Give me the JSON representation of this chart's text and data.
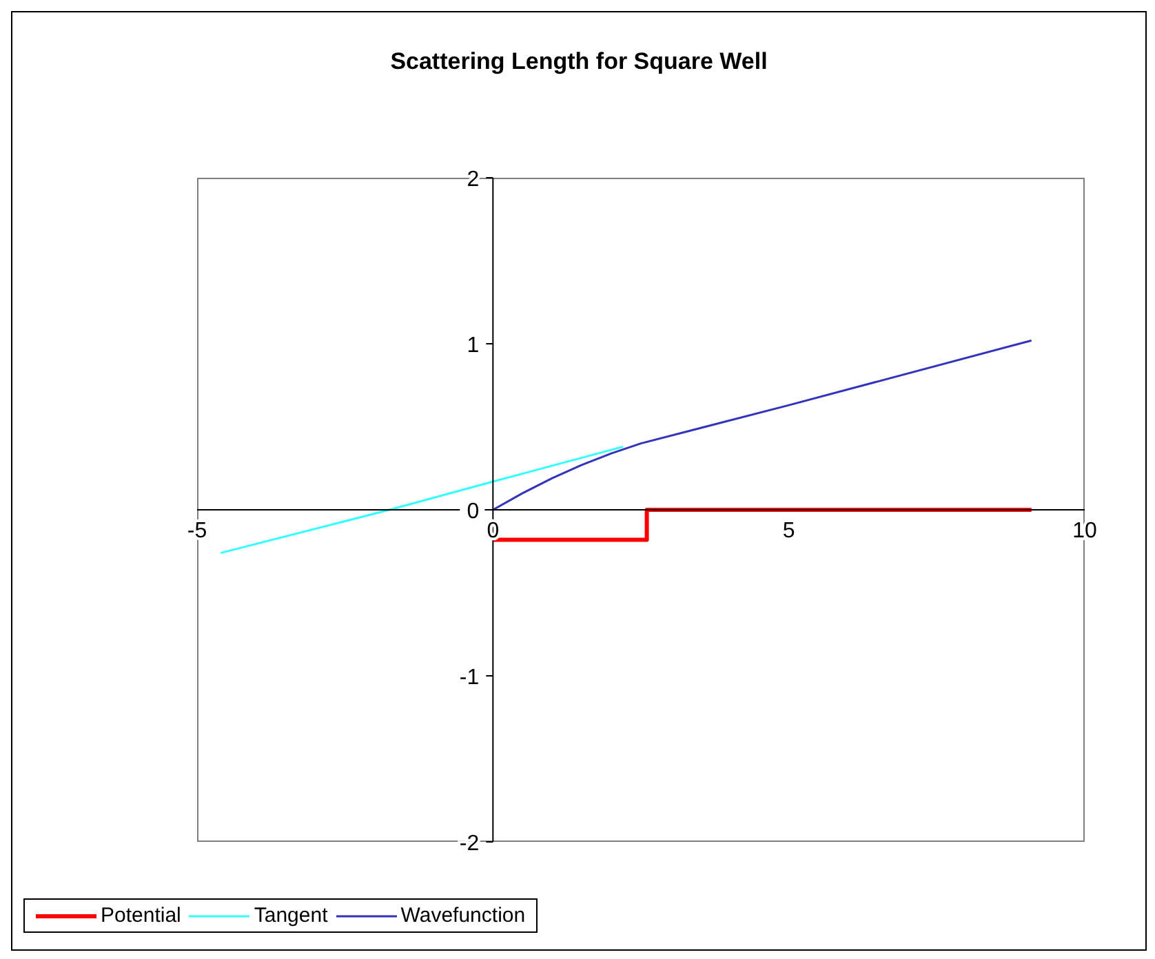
{
  "chart_data": {
    "type": "line",
    "title": "Scattering Length for Square Well",
    "series": [
      {
        "name": "Potential",
        "color": "#ff0000",
        "x": [
          0,
          2.6,
          2.6,
          9.1
        ],
        "values": [
          -0.18,
          -0.18,
          0,
          0
        ]
      },
      {
        "name": "Tangent",
        "color": "#33ffff",
        "x": [
          -4.6,
          -1.75,
          0,
          2.2
        ],
        "values": [
          -0.26,
          0,
          0.17,
          0.38
        ]
      },
      {
        "name": "Wavefunction",
        "color": "#3333bb",
        "x": [
          0,
          0.5,
          1,
          1.5,
          2,
          2.5,
          5,
          9.1
        ],
        "values": [
          0,
          0.1,
          0.19,
          0.27,
          0.34,
          0.4,
          0.63,
          1.02
        ]
      }
    ],
    "xlim": [
      -5,
      10
    ],
    "xticks": [
      -5,
      0,
      5,
      10
    ],
    "ylim": [
      -2,
      2
    ],
    "yticks": [
      -2,
      -1,
      0,
      1,
      2
    ],
    "grid": false,
    "legend": "bottom left",
    "marker": "none",
    "line_style": "solid"
  }
}
